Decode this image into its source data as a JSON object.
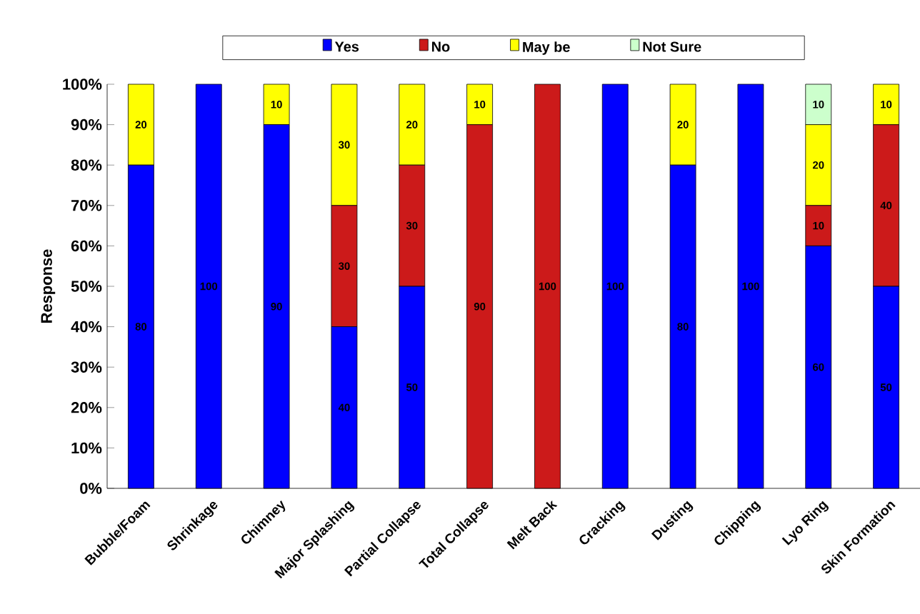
{
  "chart_data": {
    "type": "bar",
    "stacked": true,
    "ylabel": "Response",
    "categories": [
      "Bubble/Foam",
      "Shrinkage",
      "Chimney",
      "Major Splashing",
      "Partial Collapse",
      "Total Collapse",
      "Melt Back",
      "Cracking",
      "Dusting",
      "Chipping",
      "Lyo Ring",
      "Skin Formation"
    ],
    "series": [
      {
        "name": "Yes",
        "color": "#0000ff",
        "values": [
          80,
          100,
          90,
          40,
          50,
          null,
          null,
          100,
          80,
          100,
          60,
          50
        ]
      },
      {
        "name": "No",
        "color": "#cc1a1a",
        "values": [
          null,
          null,
          null,
          30,
          30,
          90,
          100,
          null,
          null,
          null,
          10,
          40
        ]
      },
      {
        "name": "May be",
        "color": "#ffff00",
        "values": [
          20,
          null,
          10,
          30,
          20,
          10,
          null,
          null,
          20,
          null,
          20,
          10
        ]
      },
      {
        "name": "Not Sure",
        "color": "#ccffcc",
        "values": [
          null,
          null,
          null,
          null,
          null,
          null,
          null,
          null,
          null,
          null,
          10,
          null
        ]
      }
    ],
    "ylim": [
      0,
      100
    ],
    "yticks": [
      {
        "value": 0,
        "label": "0%"
      },
      {
        "value": 10,
        "label": "10%"
      },
      {
        "value": 20,
        "label": "20%"
      },
      {
        "value": 30,
        "label": "30%"
      },
      {
        "value": 40,
        "label": "40%"
      },
      {
        "value": 50,
        "label": "50%"
      },
      {
        "value": 60,
        "label": "60%"
      },
      {
        "value": 70,
        "label": "70%"
      },
      {
        "value": 80,
        "label": "80%"
      },
      {
        "value": 90,
        "label": "90%"
      },
      {
        "value": 100,
        "label": "100%"
      }
    ],
    "data_labels": true,
    "grid": false,
    "legend": "top"
  }
}
